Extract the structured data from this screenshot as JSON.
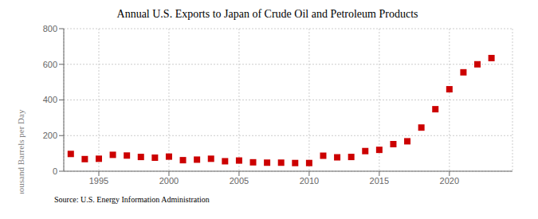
{
  "chart_data": {
    "type": "scatter",
    "title": "Annual U.S. Exports to Japan of Crude Oil and Petroleum Products",
    "y_label": "Thousand Barrels per Day",
    "annotations": [
      "Source: U.S. Energy Information Administration"
    ],
    "x": [
      1993,
      1994,
      1995,
      1996,
      1997,
      1998,
      1999,
      2000,
      2001,
      2002,
      2003,
      2004,
      2005,
      2006,
      2007,
      2008,
      2009,
      2010,
      2011,
      2012,
      2013,
      2014,
      2015,
      2016,
      2017,
      2018,
      2019,
      2020,
      2021,
      2022,
      2023
    ],
    "values": [
      97,
      68,
      70,
      92,
      88,
      80,
      76,
      82,
      62,
      65,
      70,
      56,
      60,
      50,
      48,
      48,
      46,
      46,
      87,
      78,
      80,
      113,
      120,
      152,
      168,
      245,
      348,
      460,
      555,
      600,
      635
    ],
    "color": "#cc0000",
    "marker": "square",
    "xlim": [
      1992.5,
      2024.5
    ],
    "xticks": [
      1995,
      2000,
      2005,
      2010,
      2015,
      2020
    ],
    "ylim": [
      0,
      800
    ],
    "yticks": [
      0,
      200,
      400,
      600,
      800
    ],
    "grid": true
  }
}
